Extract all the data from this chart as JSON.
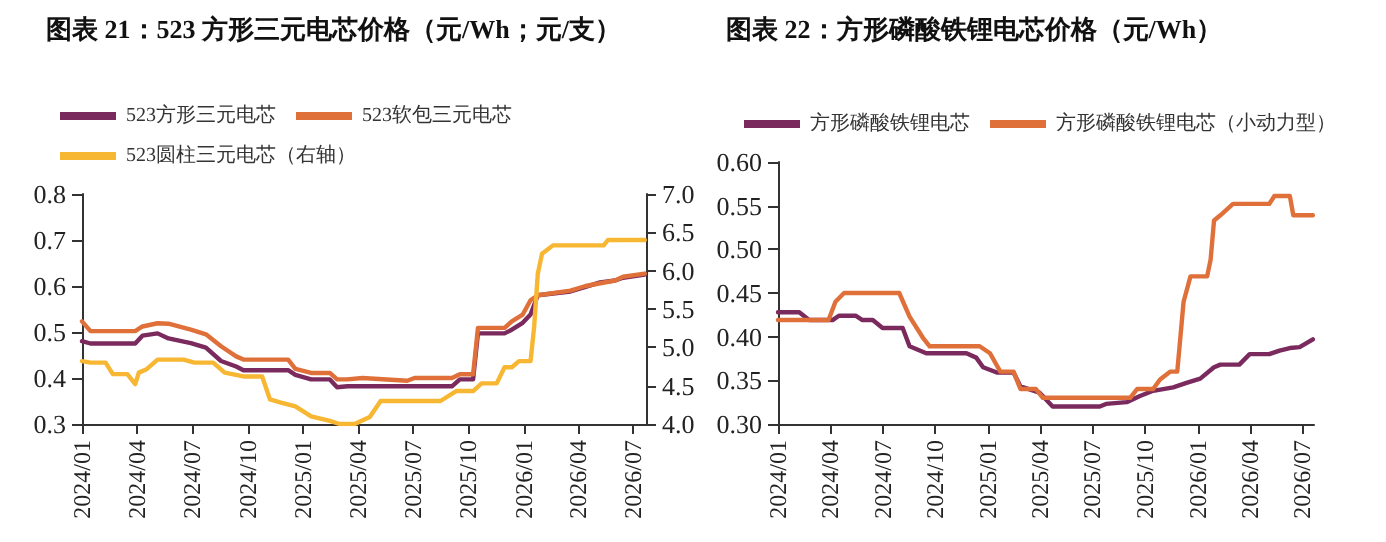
{
  "chart_data": [
    {
      "type": "line",
      "title": "图表 21：523 方形三元电芯价格（元/Wh；元/支）",
      "legend": "top",
      "marker": "none",
      "xlim": [
        "2024-01-01",
        "2026-07-22"
      ],
      "xticks": [
        {
          "value": "2024-01",
          "label": "2024/01"
        },
        {
          "value": "2024-04",
          "label": "2024/04"
        },
        {
          "value": "2024-07",
          "label": "2024/07"
        },
        {
          "value": "2024-10",
          "label": "2024/10"
        },
        {
          "value": "2025-01",
          "label": "2025/01"
        },
        {
          "value": "2025-04",
          "label": "2025/04"
        },
        {
          "value": "2025-07",
          "label": "2025/07"
        },
        {
          "value": "2025-10",
          "label": "2025/10"
        },
        {
          "value": "2026-01",
          "label": "2026/01"
        },
        {
          "value": "2026-04",
          "label": "2026/04"
        },
        {
          "value": "2026-07",
          "label": "2026/07"
        }
      ],
      "ylim": [
        0.3,
        0.8
      ],
      "yticks": [
        0.3,
        0.4,
        0.5,
        0.6,
        0.7,
        0.8
      ],
      "y2lim": [
        4.0,
        7.0
      ],
      "y2ticks": [
        {
          "value": 4,
          "label": "4.0"
        },
        {
          "value": 4.5,
          "label": "4.5"
        },
        {
          "value": 5,
          "label": "5.0"
        },
        {
          "value": 5.5,
          "label": "5.5"
        },
        {
          "value": 6,
          "label": "6.0"
        },
        {
          "value": 6.5,
          "label": "6.5"
        },
        {
          "value": 7,
          "label": "7.0"
        }
      ],
      "series": [
        {
          "name": "523方形三元电芯",
          "color": "#7b2a5e",
          "x": [
            "2024-01-01",
            "2024-01-15",
            "2024-03-29",
            "2024-04-10",
            "2024-05-05",
            "2024-05-23",
            "2024-06-29",
            "2024-07-24",
            "2024-08-18",
            "2024-09-12",
            "2024-09-24",
            "2024-12-07",
            "2024-12-19",
            "2025-01-14",
            "2025-02-14",
            "2025-02-26",
            "2025-03-15",
            "2025-09-04",
            "2025-09-17",
            "2025-10-09",
            "2025-10-17",
            "2025-11-30",
            "2025-12-12",
            "2025-12-30",
            "2026-01-12",
            "2026-01-24",
            "2026-03-19",
            "2026-04-13",
            "2026-05-07",
            "2026-06-01",
            "2026-06-14",
            "2026-07-20"
          ],
          "values": [
            0.48,
            0.475,
            0.475,
            0.492,
            0.497,
            0.486,
            0.476,
            0.466,
            0.437,
            0.425,
            0.417,
            0.417,
            0.407,
            0.397,
            0.397,
            0.38,
            0.382,
            0.382,
            0.397,
            0.397,
            0.497,
            0.497,
            0.505,
            0.52,
            0.538,
            0.58,
            0.588,
            0.598,
            0.608,
            0.612,
            0.618,
            0.625
          ]
        },
        {
          "name": "523软包三元电芯",
          "color": "#e0703a",
          "x": [
            "2024-01-01",
            "2024-01-15",
            "2024-03-29",
            "2024-04-10",
            "2024-05-05",
            "2024-05-23",
            "2024-06-29",
            "2024-07-24",
            "2024-08-18",
            "2024-09-12",
            "2024-09-24",
            "2024-12-07",
            "2024-12-19",
            "2025-01-14",
            "2025-02-14",
            "2025-02-26",
            "2025-03-15",
            "2025-04-09",
            "2025-06-22",
            "2025-07-04",
            "2025-09-04",
            "2025-09-17",
            "2025-10-09",
            "2025-10-17",
            "2025-11-30",
            "2025-12-12",
            "2025-12-30",
            "2026-01-12",
            "2026-01-24",
            "2026-03-19",
            "2026-04-13",
            "2026-06-01",
            "2026-06-14",
            "2026-07-20"
          ],
          "values": [
            0.523,
            0.502,
            0.502,
            0.512,
            0.519,
            0.518,
            0.505,
            0.495,
            0.469,
            0.447,
            0.44,
            0.44,
            0.42,
            0.411,
            0.411,
            0.397,
            0.397,
            0.4,
            0.394,
            0.4,
            0.4,
            0.408,
            0.408,
            0.509,
            0.509,
            0.523,
            0.538,
            0.569,
            0.58,
            0.59,
            0.6,
            0.612,
            0.62,
            0.627
          ]
        },
        {
          "name": "523圆柱三元电芯（右轴）",
          "color": "#f7b733",
          "axis": "y2",
          "x": [
            "2024-01-01",
            "2024-01-15",
            "2024-02-09",
            "2024-02-21",
            "2024-03-16",
            "2024-03-29",
            "2024-04-04",
            "2024-04-16",
            "2024-05-05",
            "2024-06-17",
            "2024-07-05",
            "2024-08-05",
            "2024-08-24",
            "2024-09-24",
            "2024-10-25",
            "2024-11-07",
            "2024-11-25",
            "2024-12-19",
            "2025-01-14",
            "2025-02-14",
            "2025-03-02",
            "2025-03-27",
            "2025-04-21",
            "2025-05-09",
            "2025-08-16",
            "2025-09-11",
            "2025-10-09",
            "2025-10-23",
            "2025-11-17",
            "2025-11-30",
            "2025-12-12",
            "2025-12-24",
            "2026-01-12",
            "2026-01-18",
            "2026-01-24",
            "2026-01-31",
            "2026-02-18",
            "2026-05-13",
            "2026-05-20",
            "2026-07-20"
          ],
          "values": [
            4.82,
            4.8,
            4.8,
            4.65,
            4.65,
            4.52,
            4.67,
            4.71,
            4.84,
            4.84,
            4.8,
            4.8,
            4.67,
            4.62,
            4.62,
            4.32,
            4.28,
            4.23,
            4.1,
            4.04,
            4.0,
            4.0,
            4.09,
            4.3,
            4.3,
            4.43,
            4.43,
            4.53,
            4.53,
            4.74,
            4.74,
            4.82,
            4.82,
            5.27,
            5.96,
            6.22,
            6.33,
            6.33,
            6.4,
            6.4
          ]
        }
      ]
    },
    {
      "type": "line",
      "title": "图表 22：方形磷酸铁锂电芯价格（元/Wh）",
      "legend": "top",
      "marker": "none",
      "xlim": [
        "2024-01-01",
        "2026-07-22"
      ],
      "xticks": [
        {
          "value": "2024-01",
          "label": "2024/01"
        },
        {
          "value": "2024-04",
          "label": "2024/04"
        },
        {
          "value": "2024-07",
          "label": "2024/07"
        },
        {
          "value": "2024-10",
          "label": "2024/10"
        },
        {
          "value": "2025-01",
          "label": "2025/01"
        },
        {
          "value": "2025-04",
          "label": "2025/04"
        },
        {
          "value": "2025-07",
          "label": "2025/07"
        },
        {
          "value": "2025-10",
          "label": "2025/10"
        },
        {
          "value": "2026-01",
          "label": "2026/01"
        },
        {
          "value": "2026-04",
          "label": "2026/04"
        },
        {
          "value": "2026-07",
          "label": "2026/07"
        }
      ],
      "ylim": [
        0.3,
        0.6
      ],
      "yticks": [
        {
          "value": 0.3,
          "label": "0.30"
        },
        {
          "value": 0.35,
          "label": "0.35"
        },
        {
          "value": 0.4,
          "label": "0.40"
        },
        {
          "value": 0.45,
          "label": "0.45"
        },
        {
          "value": 0.5,
          "label": "0.50"
        },
        {
          "value": 0.55,
          "label": "0.55"
        },
        {
          "value": 0.6,
          "label": "0.60"
        }
      ],
      "series": [
        {
          "name": "方形磷酸铁锂电芯",
          "color": "#7b2a5e",
          "x": [
            "2024-01-01",
            "2024-02-07",
            "2024-02-24",
            "2024-04-05",
            "2024-04-16",
            "2024-05-15",
            "2024-05-27",
            "2024-06-14",
            "2024-07-01",
            "2024-08-05",
            "2024-08-17",
            "2024-09-15",
            "2024-11-24",
            "2024-12-11",
            "2024-12-23",
            "2025-01-16",
            "2025-02-14",
            "2025-02-26",
            "2025-03-31",
            "2025-04-23",
            "2025-07-14",
            "2025-07-25",
            "2025-08-30",
            "2025-09-22",
            "2025-10-15",
            "2025-11-19",
            "2025-12-12",
            "2026-01-05",
            "2026-01-29",
            "2026-02-09",
            "2026-03-14",
            "2026-04-01",
            "2026-05-05",
            "2026-05-23",
            "2026-06-10",
            "2026-06-27",
            "2026-07-20"
          ],
          "values": [
            0.428,
            0.428,
            0.419,
            0.419,
            0.424,
            0.424,
            0.419,
            0.419,
            0.41,
            0.41,
            0.389,
            0.381,
            0.381,
            0.376,
            0.365,
            0.359,
            0.359,
            0.343,
            0.336,
            0.32,
            0.32,
            0.323,
            0.325,
            0.332,
            0.338,
            0.342,
            0.347,
            0.352,
            0.365,
            0.368,
            0.368,
            0.38,
            0.38,
            0.384,
            0.387,
            0.388,
            0.397
          ]
        },
        {
          "name": "方形磷酸铁锂电芯（小动力型）",
          "color": "#e0703a",
          "x": [
            "2024-01-01",
            "2024-03-29",
            "2024-04-10",
            "2024-04-25",
            "2024-07-30",
            "2024-08-17",
            "2024-09-09",
            "2024-09-21",
            "2024-12-17",
            "2025-01-04",
            "2025-01-22",
            "2025-02-14",
            "2025-02-26",
            "2025-03-25",
            "2025-04-06",
            "2025-09-05",
            "2025-09-17",
            "2025-10-15",
            "2025-10-27",
            "2025-11-14",
            "2025-11-26",
            "2025-12-07",
            "2025-12-19",
            "2026-01-17",
            "2026-01-23",
            "2026-01-29",
            "2026-02-09",
            "2026-03-03",
            "2026-05-05",
            "2026-05-14",
            "2026-06-10",
            "2026-06-16",
            "2026-07-20"
          ],
          "values": [
            0.419,
            0.419,
            0.44,
            0.45,
            0.45,
            0.423,
            0.399,
            0.389,
            0.389,
            0.381,
            0.36,
            0.36,
            0.34,
            0.34,
            0.33,
            0.33,
            0.34,
            0.34,
            0.351,
            0.36,
            0.36,
            0.44,
            0.469,
            0.469,
            0.488,
            0.533,
            0.539,
            0.552,
            0.552,
            0.561,
            0.561,
            0.539,
            0.539
          ]
        }
      ]
    }
  ]
}
